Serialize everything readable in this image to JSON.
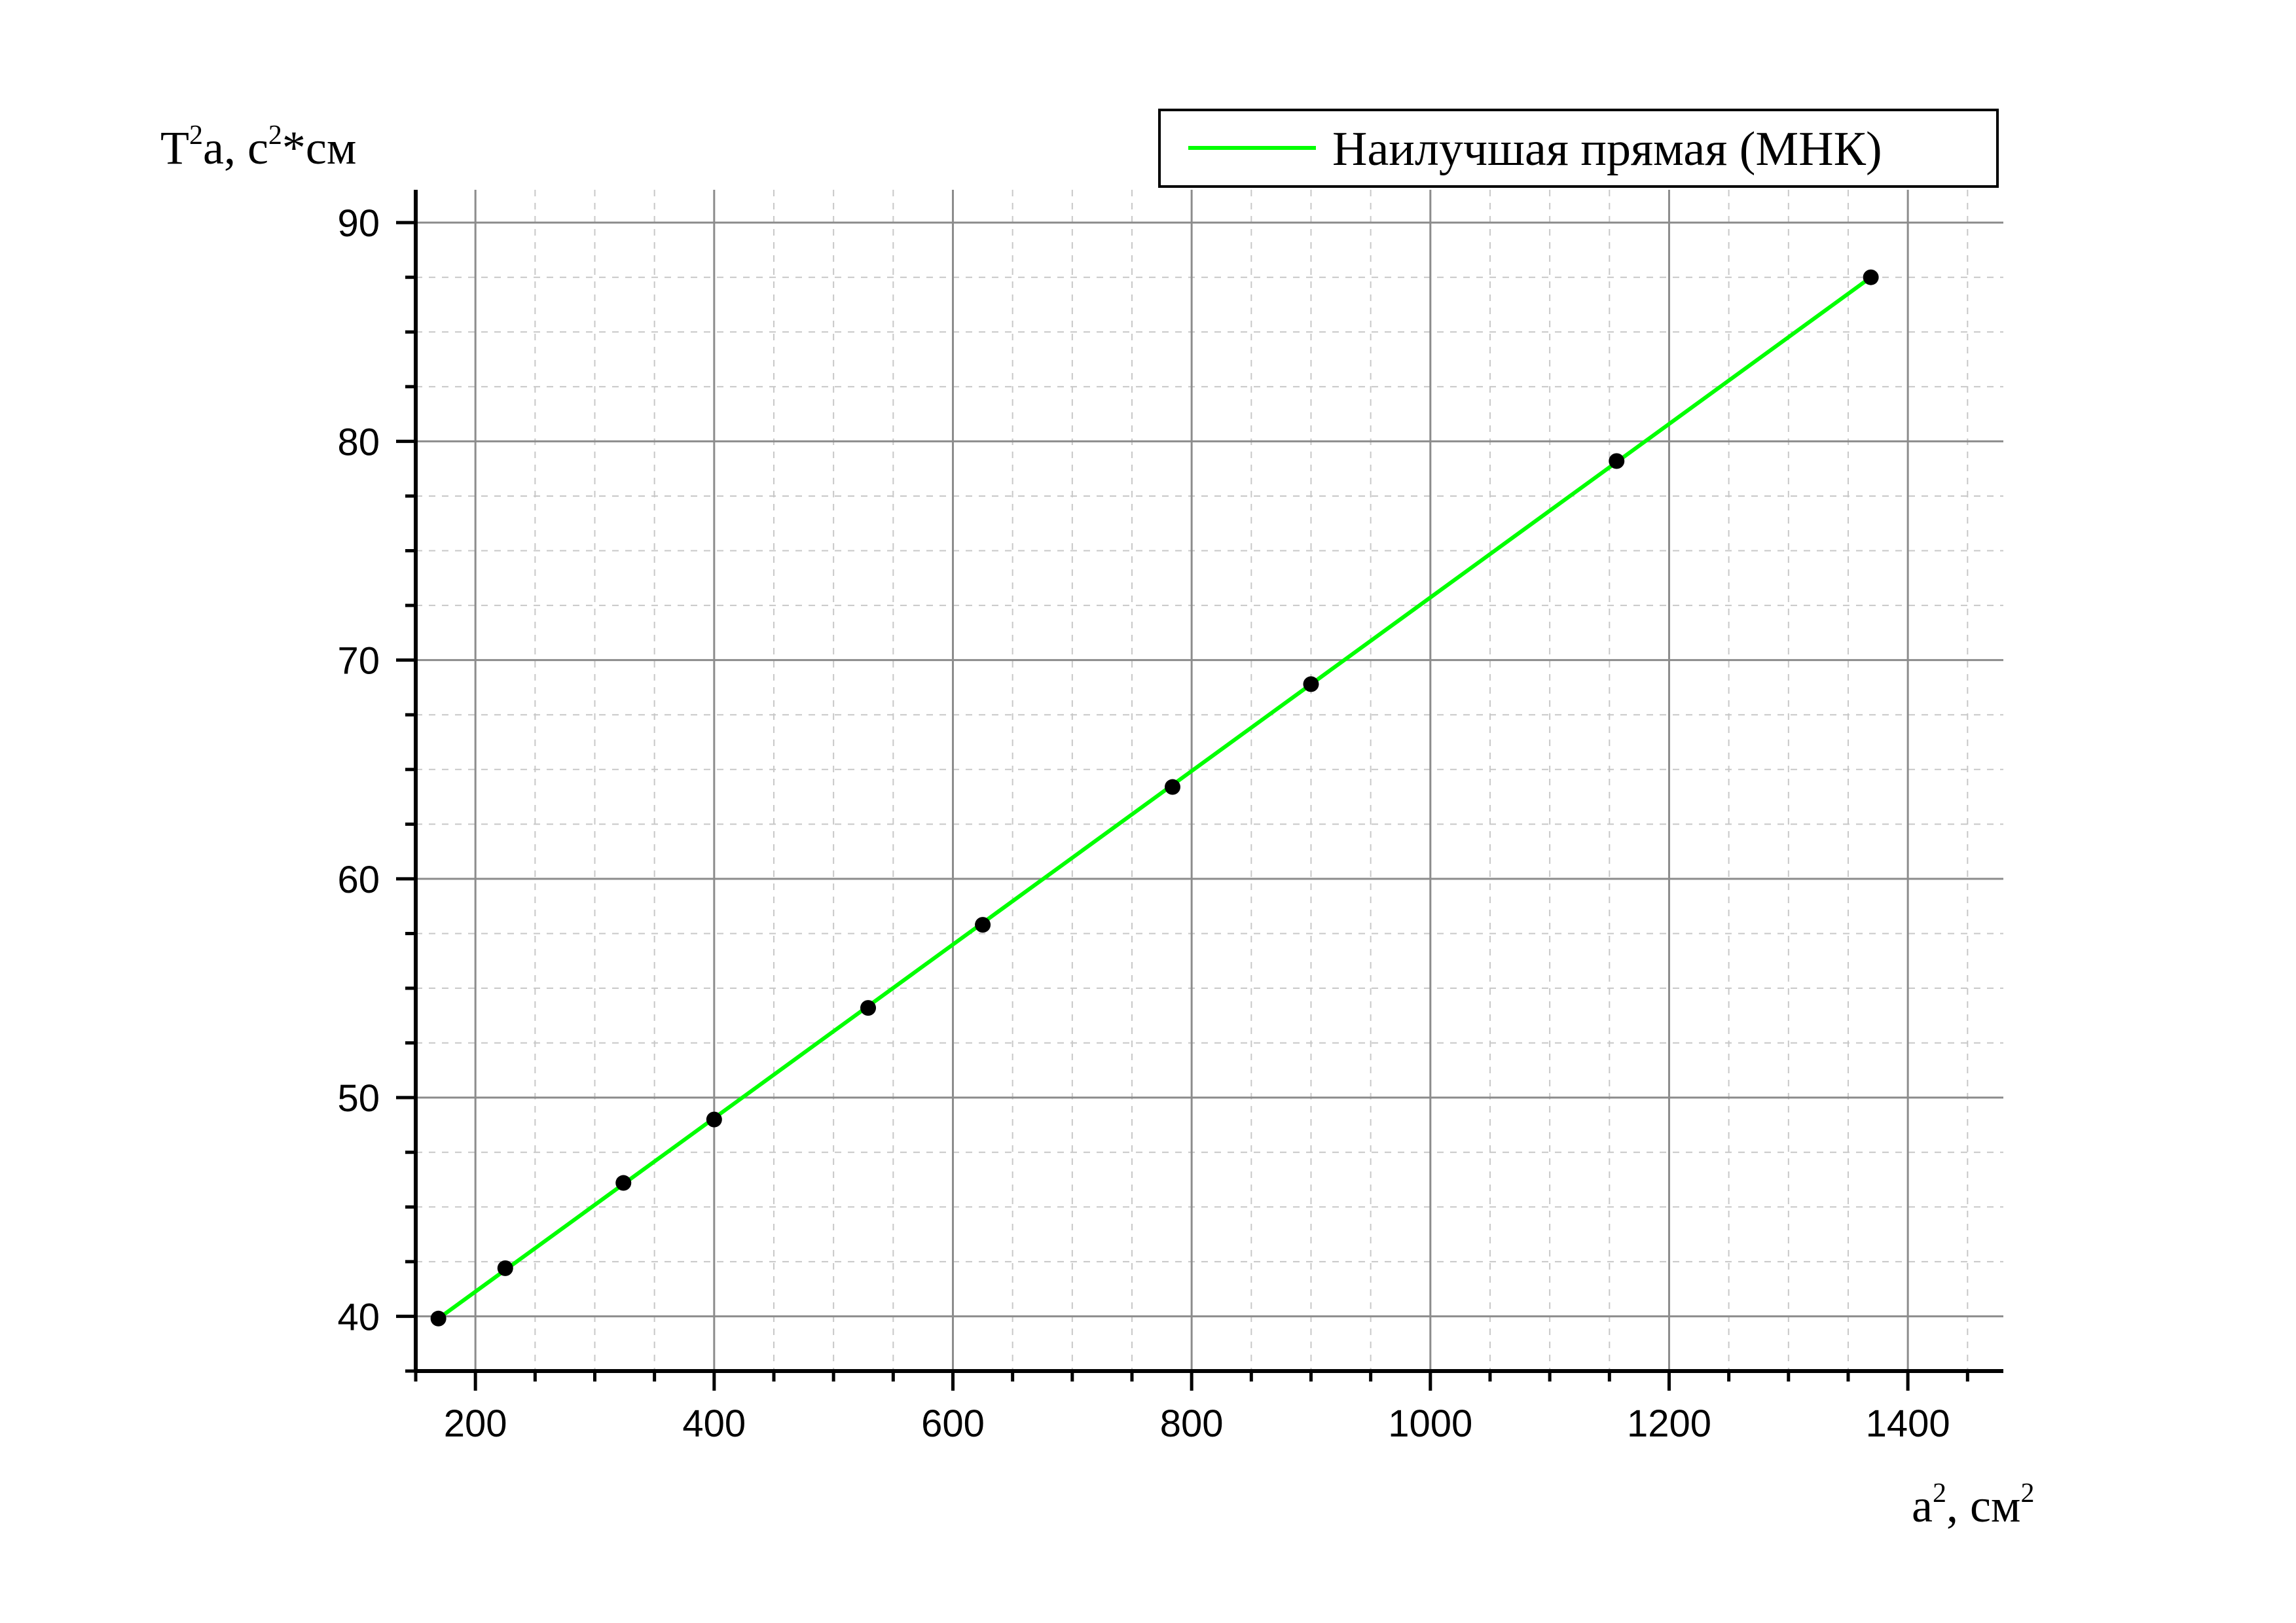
{
  "chart_data": {
    "type": "scatter",
    "title": "",
    "xlabel": {
      "base": "a",
      "sup1": "2",
      "mid": ", см",
      "sup2": "2"
    },
    "ylabel": {
      "base": "T",
      "sup1": "2",
      "mid": "a, c",
      "sup2": "2",
      "tail": "*см"
    },
    "xlim": [
      150,
      1480
    ],
    "ylim": [
      37.5,
      91.5
    ],
    "xticks": [
      200,
      400,
      600,
      800,
      1000,
      1200,
      1400
    ],
    "yticks": [
      40,
      50,
      60,
      70,
      80,
      90
    ],
    "xtick_labels": [
      "200",
      "400",
      "600",
      "800",
      "1000",
      "1200",
      "1400"
    ],
    "ytick_labels": [
      "40",
      "50",
      "60",
      "70",
      "80",
      "90"
    ],
    "grid": true,
    "minor_grid": true,
    "legend": {
      "placement": "top-right",
      "entries": [
        "Наилучшая прямая (МНК)"
      ]
    },
    "series": [
      {
        "kind": "points",
        "color": "#000000",
        "x": [
          169,
          225,
          324,
          400,
          529,
          625,
          784,
          900,
          1156,
          1369
        ],
        "y": [
          39.9,
          42.2,
          46.1,
          49.0,
          54.1,
          57.9,
          64.2,
          68.9,
          79.1,
          87.5
        ]
      },
      {
        "name": "Наилучшая прямая (МНК)",
        "kind": "line",
        "color": "#00ff00",
        "x": [
          169,
          1369
        ],
        "y": [
          39.9,
          87.5
        ]
      }
    ]
  }
}
